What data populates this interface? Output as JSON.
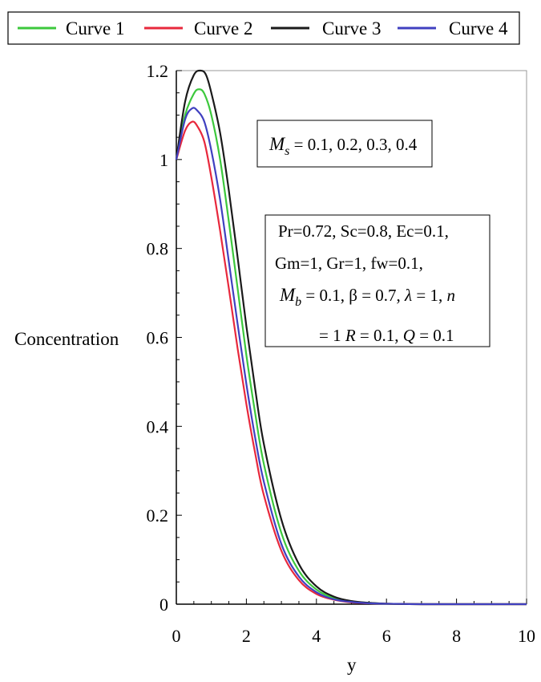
{
  "chart_data": {
    "type": "line",
    "title": "",
    "xlabel": "y",
    "ylabel": "Concentration",
    "xlim": [
      0,
      10
    ],
    "ylim": [
      0,
      1.2
    ],
    "x_ticks": [
      "0",
      "2",
      "4",
      "6",
      "8",
      "10"
    ],
    "y_ticks": [
      "0",
      "0.2",
      "0.4",
      "0.6",
      "0.8",
      "1",
      "1.2"
    ],
    "grid": false,
    "legend_position": "top",
    "series": [
      {
        "name": "Curve 1",
        "color": "#3cc83c",
        "x": [
          0,
          0.25,
          0.5,
          0.65,
          0.8,
          1.0,
          1.25,
          1.5,
          1.75,
          2.0,
          2.25,
          2.5,
          3.0,
          3.5,
          4.0,
          4.5,
          5.0,
          5.5,
          6.0,
          7.0,
          8.0,
          9.0,
          10.0
        ],
        "values": [
          1.0,
          1.1,
          1.148,
          1.158,
          1.148,
          1.1,
          1.0,
          0.86,
          0.71,
          0.56,
          0.43,
          0.315,
          0.16,
          0.075,
          0.033,
          0.014,
          0.006,
          0.003,
          0.001,
          0.0,
          0.0,
          0.0,
          0.0
        ]
      },
      {
        "name": "Curve 2",
        "color": "#e8283c",
        "x": [
          0,
          0.25,
          0.45,
          0.6,
          0.8,
          1.0,
          1.25,
          1.5,
          1.75,
          2.0,
          2.25,
          2.5,
          3.0,
          3.5,
          4.0,
          4.5,
          5.0,
          5.5,
          6.0,
          7.0,
          8.0,
          9.0,
          10.0
        ],
        "values": [
          1.0,
          1.065,
          1.085,
          1.075,
          1.04,
          0.96,
          0.84,
          0.71,
          0.575,
          0.45,
          0.34,
          0.245,
          0.12,
          0.054,
          0.023,
          0.01,
          0.004,
          0.002,
          0.001,
          0.0,
          0.0,
          0.0,
          0.0
        ]
      },
      {
        "name": "Curve 3",
        "color": "#1a1a1a",
        "x": [
          0,
          0.25,
          0.5,
          0.7,
          0.85,
          1.0,
          1.25,
          1.5,
          1.75,
          2.0,
          2.25,
          2.5,
          3.0,
          3.5,
          4.0,
          4.5,
          5.0,
          5.5,
          6.0,
          7.0,
          8.0,
          9.0,
          10.0
        ],
        "values": [
          1.0,
          1.13,
          1.19,
          1.2,
          1.19,
          1.15,
          1.06,
          0.93,
          0.78,
          0.625,
          0.485,
          0.36,
          0.19,
          0.09,
          0.04,
          0.017,
          0.007,
          0.003,
          0.001,
          0.0,
          0.0,
          0.0,
          0.0
        ]
      },
      {
        "name": "Curve 4",
        "color": "#4040c0",
        "x": [
          0,
          0.25,
          0.45,
          0.6,
          0.8,
          1.0,
          1.25,
          1.5,
          1.75,
          2.0,
          2.25,
          2.5,
          3.0,
          3.5,
          4.0,
          4.5,
          5.0,
          5.5,
          6.0,
          7.0,
          8.0,
          9.0,
          10.0
        ],
        "values": [
          1.0,
          1.09,
          1.115,
          1.11,
          1.085,
          1.02,
          0.91,
          0.77,
          0.63,
          0.495,
          0.375,
          0.275,
          0.135,
          0.062,
          0.027,
          0.011,
          0.005,
          0.002,
          0.001,
          0.0,
          0.0,
          0.0,
          0.0
        ]
      }
    ],
    "annotations": {
      "box1": {
        "symbol": "M",
        "subscript": "s",
        "text": " = 0.1, 0.2, 0.3, 0.4"
      },
      "box2": {
        "line1": "Pr=0.72, Sc=0.8, Ec=0.1,",
        "line2": "Gm=1, Gr=1, fw=0.1,",
        "line3": {
          "sym_M": "M",
          "sub_b": "b",
          "t1": " = 0.1, β = 0.7, ",
          "sym_lambda": "λ",
          "t2": " = 1, ",
          "sym_n": "n"
        },
        "line4": {
          "t1": "= 1 ",
          "sym_R": "R",
          "t2": " = 0.1, ",
          "sym_Q": "Q",
          "t3": " = 0.1"
        }
      }
    }
  }
}
